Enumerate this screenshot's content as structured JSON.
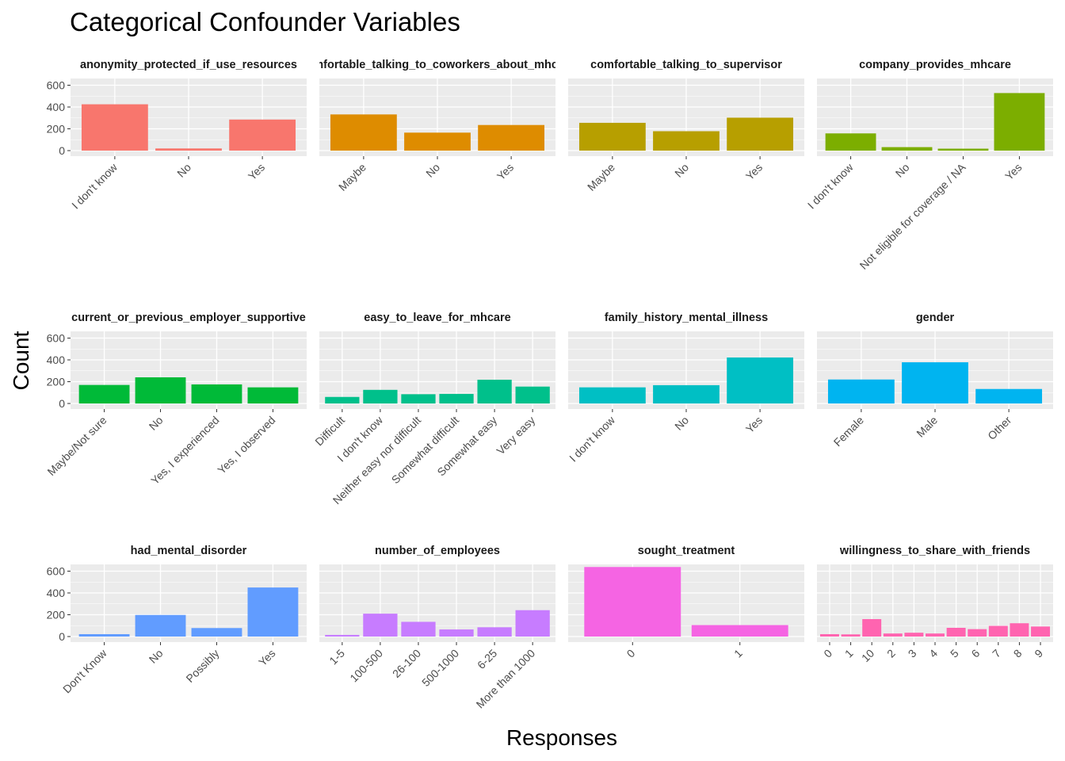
{
  "chart_data": {
    "type": "bar",
    "title": "Categorical Confounder Variables",
    "xlabel": "Responses",
    "ylabel": "Count",
    "ylim": [
      0,
      660
    ],
    "yticks": [
      0,
      200,
      400,
      600
    ],
    "grid": true,
    "legend": "none",
    "facets": [
      {
        "name": "anonymity_protected_if_use_resources",
        "color": "#F8766D",
        "categories": [
          "I don't know",
          "No",
          "Yes"
        ],
        "values": [
          425,
          20,
          285
        ]
      },
      {
        "name": "comfortable_talking_to_coworkers_about_mhcare",
        "color": "#DE8C00",
        "categories": [
          "Maybe",
          "No",
          "Yes"
        ],
        "values": [
          332,
          165,
          235
        ]
      },
      {
        "name": "comfortable_talking_to_supervisor",
        "color": "#B79F00",
        "categories": [
          "Maybe",
          "No",
          "Yes"
        ],
        "values": [
          255,
          178,
          302
        ]
      },
      {
        "name": "company_provides_mhcare",
        "color": "#7CAE00",
        "categories": [
          "I don't know",
          "No",
          "Not eligible for coverage / NA",
          "Yes"
        ],
        "values": [
          158,
          32,
          18,
          528
        ]
      },
      {
        "name": "current_or_previous_employer_supportive",
        "color": "#00BA38",
        "categories": [
          "Maybe/Not sure",
          "No",
          "Yes, I experienced",
          "Yes, I observed"
        ],
        "values": [
          170,
          240,
          175,
          148
        ]
      },
      {
        "name": "easy_to_leave_for_mhcare",
        "color": "#00C08B",
        "categories": [
          "Difficult",
          "I don't know",
          "Neither easy nor difficult",
          "Somewhat difficult",
          "Somewhat easy",
          "Very easy"
        ],
        "values": [
          60,
          125,
          85,
          88,
          218,
          155
        ]
      },
      {
        "name": "family_history_mental_illness",
        "color": "#00BFC4",
        "categories": [
          "I don't know",
          "No",
          "Yes"
        ],
        "values": [
          148,
          168,
          422
        ]
      },
      {
        "name": "gender",
        "color": "#00B4F0",
        "categories": [
          "Female",
          "Male",
          "Other"
        ],
        "values": [
          220,
          378,
          133
        ]
      },
      {
        "name": "had_mental_disorder",
        "color": "#619CFF",
        "categories": [
          "Don't Know",
          "No",
          "Possibly",
          "Yes"
        ],
        "values": [
          22,
          198,
          78,
          450
        ]
      },
      {
        "name": "number_of_employees",
        "color": "#C77CFF",
        "categories": [
          "1-5",
          "100-500",
          "26-100",
          "500-1000",
          "6-25",
          "More than 1000"
        ],
        "values": [
          15,
          210,
          135,
          65,
          85,
          242
        ]
      },
      {
        "name": "sought_treatment",
        "color": "#F564E3",
        "categories": [
          "0",
          "1"
        ],
        "values": [
          638,
          105
        ]
      },
      {
        "name": "willingness_to_share_with_friends",
        "color": "#FF64B0",
        "categories": [
          "0",
          "1",
          "10",
          "2",
          "3",
          "4",
          "5",
          "6",
          "7",
          "8",
          "9"
        ],
        "values": [
          22,
          20,
          160,
          28,
          35,
          28,
          80,
          68,
          98,
          122,
          92
        ]
      }
    ]
  }
}
